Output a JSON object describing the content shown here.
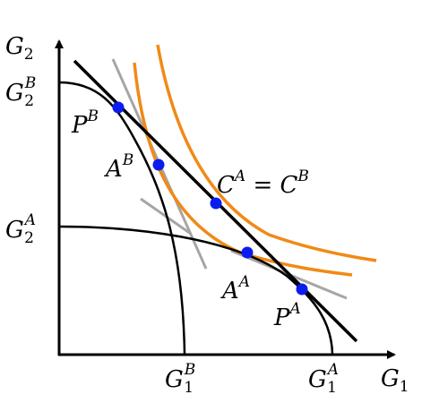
{
  "axes": {
    "y": {
      "main": "G",
      "sub": "2"
    },
    "x": {
      "main": "G",
      "sub": "1"
    }
  },
  "tick_labels": {
    "g2b": {
      "main": "G",
      "sup": "B",
      "sub": "2"
    },
    "g2a": {
      "main": "G",
      "sup": "A",
      "sub": "2"
    },
    "g1b": {
      "main": "G",
      "sup": "B",
      "sub": "1"
    },
    "g1a": {
      "main": "G",
      "sup": "A",
      "sub": "1"
    }
  },
  "point_labels": {
    "pb": {
      "main": "P",
      "sup": "B"
    },
    "ab": {
      "main": "A",
      "sup": "B"
    },
    "c": {
      "left_main": "C",
      "left_sup": "A",
      "eq": " = ",
      "right_main": "C",
      "right_sup": "B"
    },
    "aa": {
      "main": "A",
      "sup": "A"
    },
    "pa": {
      "main": "P",
      "sup": "A"
    }
  },
  "colors": {
    "axis": "#000000",
    "frontier": "#000000",
    "price_line": "#000000",
    "tangent": "#a6a6a6",
    "indifference": "#f08a16",
    "point": "#0a1cf0"
  }
}
